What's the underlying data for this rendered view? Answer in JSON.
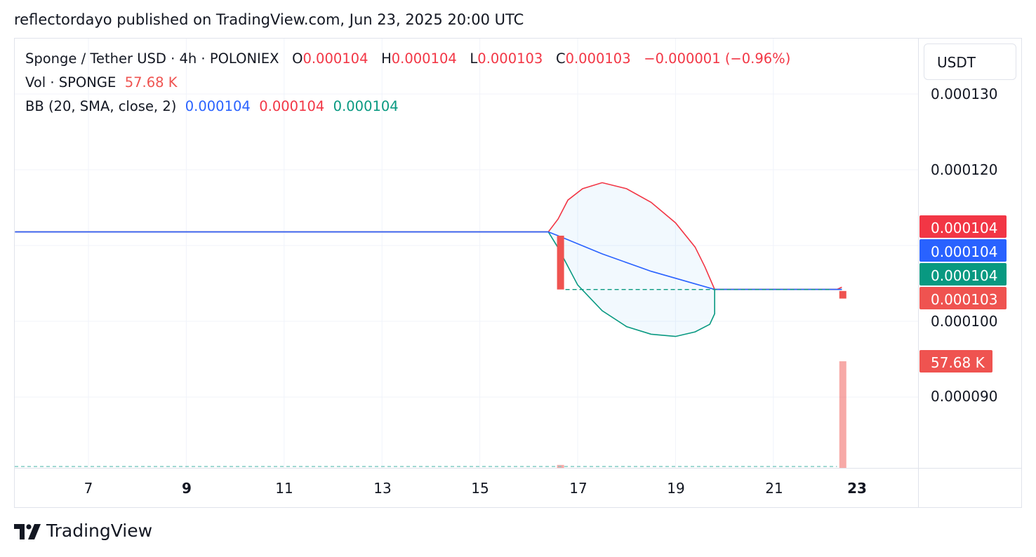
{
  "header": {
    "text": "reflectordayo published on TradingView.com, Jun 23, 2025 20:00 UTC"
  },
  "legend": {
    "symbol": "Sponge / Tether USD · 4h · POLONIEX",
    "o_label": "O",
    "o_value": "0.000104",
    "h_label": "H",
    "h_value": "0.000104",
    "l_label": "L",
    "l_value": "0.000103",
    "c_label": "C",
    "c_value": "0.000103",
    "change": "−0.000001 (−0.96%)",
    "vol_label": "Vol · SPONGE",
    "vol_value": "57.68 K",
    "bb_label": "BB (20, SMA, close, 2)",
    "bb_basis": "0.000104",
    "bb_upper": "0.000104",
    "bb_lower": "0.000104"
  },
  "price_axis": {
    "unit": "USDT",
    "labels": [
      "0.000130",
      "0.000120",
      "0.000100",
      "0.000090"
    ]
  },
  "tags": {
    "upper": "0.000104",
    "basis": "0.000104",
    "lower": "0.000104",
    "close": "0.000103",
    "volume": "57.68 K"
  },
  "time_axis": {
    "labels": [
      "7",
      "9",
      "11",
      "13",
      "15",
      "17",
      "19",
      "21",
      "23"
    ]
  },
  "footer": {
    "brand": "TradingView"
  },
  "colors": {
    "upper": "#f23645",
    "basis": "#2962ff",
    "lower": "#089981",
    "down": "#ef5350",
    "band_fill": "#2196f3"
  },
  "chart_data": {
    "type": "line",
    "title": "Sponge / Tether USD · 4h · POLONIEX",
    "xlabel": "",
    "ylabel": "USDT",
    "ylim": [
      8.15e-05,
      0.000137
    ],
    "grid": true,
    "x_ticks": [
      "7",
      "9",
      "11",
      "13",
      "15",
      "17",
      "19",
      "21",
      "23"
    ],
    "x_range_days": [
      5.5,
      24.0
    ],
    "series": [
      {
        "name": "upper",
        "points": [
          [
            5.5,
            0.0001118
          ],
          [
            16.4,
            0.0001118
          ],
          [
            16.6,
            0.0001135
          ],
          [
            16.8,
            0.000116
          ],
          [
            17.1,
            0.0001175
          ],
          [
            17.5,
            0.0001183
          ],
          [
            18.0,
            0.0001175
          ],
          [
            18.5,
            0.0001157
          ],
          [
            19.0,
            0.000113
          ],
          [
            19.4,
            0.0001098
          ],
          [
            19.6,
            0.0001072
          ],
          [
            19.8,
            0.0001042
          ],
          [
            22.3,
            0.0001042
          ],
          [
            22.4,
            0.0001045
          ]
        ]
      },
      {
        "name": "basis",
        "points": [
          [
            5.5,
            0.0001118
          ],
          [
            16.4,
            0.0001118
          ],
          [
            16.6,
            0.0001113
          ],
          [
            17.5,
            0.0001089
          ],
          [
            18.5,
            0.0001066
          ],
          [
            19.8,
            0.0001042
          ],
          [
            22.4,
            0.0001042
          ]
        ]
      },
      {
        "name": "lower",
        "points": [
          [
            5.5,
            0.0001118
          ],
          [
            16.4,
            0.0001118
          ],
          [
            16.6,
            0.0001097
          ],
          [
            17.0,
            0.0001048
          ],
          [
            17.5,
            0.0001014
          ],
          [
            18.0,
            9.93e-05
          ],
          [
            18.5,
            9.83e-05
          ],
          [
            19.0,
            9.8e-05
          ],
          [
            19.4,
            9.86e-05
          ],
          [
            19.7,
            9.96e-05
          ],
          [
            19.8,
            0.000101
          ],
          [
            19.8,
            0.0001042
          ],
          [
            22.3,
            0.0001042
          ],
          [
            22.4,
            0.0001042
          ]
        ]
      }
    ],
    "candles": [
      {
        "x": 16.65,
        "open": 0.0001113,
        "high": 0.0001113,
        "low": 0.0001042,
        "close": 0.0001042,
        "direction": "down"
      },
      {
        "x": 22.42,
        "open": 0.000104,
        "high": 0.000104,
        "low": 0.000103,
        "close": 0.000103,
        "direction": "down"
      }
    ],
    "volume": [
      {
        "x": 16.65,
        "value": 1.6
      },
      {
        "x": 22.42,
        "value": 57.68
      }
    ],
    "volume_unit": "K"
  }
}
